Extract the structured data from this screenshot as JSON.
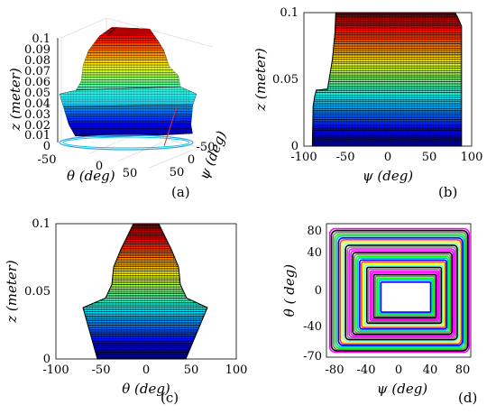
{
  "colors": {
    "jet": [
      "#00007f",
      "#0000ff",
      "#007fff",
      "#00ffff",
      "#7fff7f",
      "#ffff00",
      "#ff7f00",
      "#ff0000",
      "#7f0000"
    ],
    "contour_cycle": [
      "#ff00ff",
      "#000000",
      "#808080",
      "#00ff00",
      "#00c0c0",
      "#0000ff",
      "#ff4040",
      "#ffff00",
      "#7fffd4",
      "#000000",
      "#808080",
      "#ff00ff"
    ]
  },
  "chart_data": [
    {
      "panel": "a",
      "type": "surface",
      "panel_label": "(a)",
      "xlabel": "θ (deg)",
      "ylabel": "ψ (deg)",
      "zlabel": "z (meter)",
      "x_ticks": [
        "-50",
        "0",
        "50"
      ],
      "y_ticks": [
        "-50",
        "0",
        "50"
      ],
      "z_ticks": [
        "0",
        "0.01",
        "0.02",
        "0.03",
        "0.04",
        "0.05",
        "0.06",
        "0.07",
        "0.08",
        "0.09",
        "0.1"
      ],
      "zlim": [
        0,
        0.1
      ]
    },
    {
      "panel": "b",
      "type": "area",
      "panel_label": "(b)",
      "xlabel": "ψ (deg)",
      "ylabel": "z (meter)",
      "xlim": [
        -100,
        100
      ],
      "ylim": [
        0,
        0.1
      ],
      "x_ticks": [
        "-100",
        "-50",
        "0",
        "50",
        "100"
      ],
      "y_ticks": [
        "0",
        "0.05",
        "0.1"
      ],
      "profile_left": [
        [
          -90,
          0
        ],
        [
          -89,
          0.03
        ],
        [
          -87,
          0.038
        ],
        [
          -85,
          0.042
        ],
        [
          -72,
          0.042
        ],
        [
          -66,
          0.065
        ],
        [
          -63,
          0.085
        ],
        [
          -62,
          0.1
        ]
      ],
      "profile_right": [
        [
          88,
          0
        ],
        [
          88,
          0.044
        ],
        [
          88,
          0.09
        ],
        [
          83,
          0.097
        ],
        [
          80,
          0.1
        ]
      ]
    },
    {
      "panel": "c",
      "type": "area",
      "panel_label": "(c)",
      "xlabel": "θ (deg)",
      "ylabel": "z (meter)",
      "xlim": [
        -100,
        100
      ],
      "ylim": [
        0,
        0.1
      ],
      "x_ticks": [
        "-100",
        "-50",
        "0",
        "50",
        "100"
      ],
      "y_ticks": [
        "0",
        "0.05",
        "0.1"
      ],
      "profile_left": [
        [
          -54,
          0
        ],
        [
          -70,
          0.038
        ],
        [
          -45,
          0.045
        ],
        [
          -38,
          0.055
        ],
        [
          -36,
          0.068
        ],
        [
          -28,
          0.081
        ],
        [
          -14,
          0.1
        ]
      ],
      "profile_right": [
        [
          44,
          0
        ],
        [
          68,
          0.038
        ],
        [
          45,
          0.045
        ],
        [
          38,
          0.055
        ],
        [
          36,
          0.068
        ],
        [
          28,
          0.081
        ],
        [
          14,
          0.1
        ]
      ]
    },
    {
      "panel": "d",
      "type": "contour",
      "panel_label": "(d)",
      "xlabel": "ψ (deg)",
      "ylabel": "θ ( deg)",
      "xlim": [
        -90,
        90
      ],
      "ylim": [
        -72,
        88
      ],
      "x_ticks": [
        "-80",
        "-40",
        "0",
        "40",
        "80"
      ],
      "y_ticks": [
        "-70",
        "-40",
        "0",
        "40",
        "80"
      ],
      "levels": 30,
      "outer": {
        "psi": [
          -86,
          88
        ],
        "theta": [
          -66,
          82
        ]
      },
      "inner": {
        "psi": [
          -22,
          40
        ],
        "theta": [
          -18,
          18
        ]
      }
    }
  ]
}
